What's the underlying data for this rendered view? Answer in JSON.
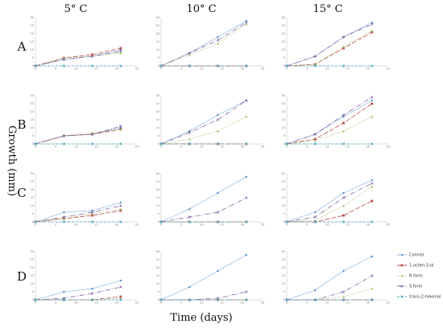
{
  "figure": {
    "column_headers": [
      "5° C",
      "10° C",
      "15° C"
    ],
    "row_labels": [
      "A",
      "B",
      "C",
      "D"
    ],
    "xlabel": "Time (days)",
    "ylabel": "Growth (mm)"
  },
  "chart_data": {
    "type": "line",
    "layout": "grid-4x3",
    "x": [
      0,
      7,
      14,
      21
    ],
    "xticks": [
      0,
      5,
      10,
      15,
      20,
      25
    ],
    "yticks": [
      0,
      5,
      10,
      15,
      20,
      25,
      30
    ],
    "xlim": [
      0,
      25
    ],
    "ylim": [
      0,
      30
    ],
    "xlabel": "Time (days)",
    "ylabel": "Growth (mm)",
    "legend_position": "bottom-right",
    "series_styles": [
      {
        "name": "Control",
        "color": "#3a7fc7",
        "dash": "1.2,1.2",
        "marker": "diamond"
      },
      {
        "name": "1-octen-3-ol",
        "color": "#c0504d",
        "dash": "6,2",
        "marker": "square"
      },
      {
        "name": "R form",
        "color": "#9bbb59",
        "dash": "1,1.5",
        "marker": "triangle"
      },
      {
        "name": "S form",
        "color": "#8064a2",
        "dash": "6,2,1,2",
        "marker": "x"
      },
      {
        "name": "trans-2-hexenal",
        "color": "#4bacc6",
        "dash": "3,2",
        "marker": "star"
      }
    ],
    "panels": [
      {
        "row": "A",
        "column": "5° C",
        "series": [
          {
            "name": "Control",
            "values": [
              0,
              4,
              6,
              10
            ]
          },
          {
            "name": "1-octen-3-ol",
            "values": [
              0,
              5,
              7,
              11
            ]
          },
          {
            "name": "R form",
            "values": [
              0,
              5,
              6,
              8
            ]
          },
          {
            "name": "S form",
            "values": [
              0,
              4,
              6,
              9
            ]
          },
          {
            "name": "trans-2-hexenal",
            "values": [
              0,
              0,
              0,
              0
            ]
          }
        ]
      },
      {
        "row": "A",
        "column": "10° C",
        "series": [
          {
            "name": "Control",
            "values": [
              0,
              8,
              18,
              28
            ]
          },
          {
            "name": "1-octen-3-ol",
            "values": [
              0,
              0,
              0,
              0
            ]
          },
          {
            "name": "R form",
            "values": [
              0,
              7,
              14,
              26
            ]
          },
          {
            "name": "S form",
            "values": [
              0,
              8,
              16,
              27
            ]
          },
          {
            "name": "trans-2-hexenal",
            "values": [
              0,
              0,
              0,
              0
            ]
          }
        ]
      },
      {
        "row": "A",
        "column": "15° C",
        "series": [
          {
            "name": "Control",
            "values": [
              0,
              6,
              18,
              27
            ]
          },
          {
            "name": "1-octen-3-ol",
            "values": [
              0,
              1,
              11,
              21
            ]
          },
          {
            "name": "R form",
            "values": [
              0,
              1,
              12,
              22
            ]
          },
          {
            "name": "S form",
            "values": [
              0,
              6,
              18,
              26
            ]
          },
          {
            "name": "trans-2-hexenal",
            "values": [
              0,
              0,
              0,
              0
            ]
          }
        ]
      },
      {
        "row": "B",
        "column": "5° C",
        "series": [
          {
            "name": "Control",
            "values": [
              0,
              5,
              6,
              10
            ]
          },
          {
            "name": "1-octen-3-ol",
            "values": [
              0,
              5,
              6,
              9
            ]
          },
          {
            "name": "R form",
            "values": [
              0,
              5,
              7,
              9
            ]
          },
          {
            "name": "S form",
            "values": [
              0,
              5,
              6,
              11
            ]
          },
          {
            "name": "trans-2-hexenal",
            "values": [
              0,
              0,
              0,
              0
            ]
          }
        ]
      },
      {
        "row": "B",
        "column": "10° C",
        "series": [
          {
            "name": "Control",
            "values": [
              0,
              8,
              18,
              27
            ]
          },
          {
            "name": "1-octen-3-ol",
            "values": [
              0,
              0,
              0,
              0
            ]
          },
          {
            "name": "R form",
            "values": [
              0,
              3,
              8,
              17
            ]
          },
          {
            "name": "S form",
            "values": [
              0,
              7,
              15,
              27
            ]
          },
          {
            "name": "trans-2-hexenal",
            "values": [
              0,
              0,
              0,
              0
            ]
          }
        ]
      },
      {
        "row": "B",
        "column": "15° C",
        "series": [
          {
            "name": "Control",
            "values": [
              0,
              6,
              17,
              27
            ]
          },
          {
            "name": "1-octen-3-ol",
            "values": [
              0,
              3,
              13,
              25
            ]
          },
          {
            "name": "R form",
            "values": [
              0,
              2,
              8,
              17
            ]
          },
          {
            "name": "S form",
            "values": [
              0,
              6,
              18,
              29
            ]
          },
          {
            "name": "trans-2-hexenal",
            "values": [
              0,
              0,
              0,
              0
            ]
          }
        ]
      },
      {
        "row": "C",
        "column": "5° C",
        "series": [
          {
            "name": "Control",
            "values": [
              0,
              6,
              7,
              12
            ]
          },
          {
            "name": "1-octen-3-ol",
            "values": [
              0,
              2,
              4,
              7
            ]
          },
          {
            "name": "R form",
            "values": [
              0,
              2,
              5,
              8
            ]
          },
          {
            "name": "S form",
            "values": [
              0,
              3,
              6,
              10
            ]
          },
          {
            "name": "trans-2-hexenal",
            "values": [
              0,
              0,
              0,
              0
            ]
          }
        ]
      },
      {
        "row": "C",
        "column": "10° C",
        "series": [
          {
            "name": "Control",
            "values": [
              0,
              8,
              18,
              28
            ]
          },
          {
            "name": "1-octen-3-ol",
            "values": [
              0,
              0,
              0,
              0
            ]
          },
          {
            "name": "R form",
            "values": [
              0,
              0,
              0,
              0
            ]
          },
          {
            "name": "S form",
            "values": [
              0,
              3,
              6,
              15
            ]
          },
          {
            "name": "trans-2-hexenal",
            "values": [
              0,
              0,
              0,
              0
            ]
          }
        ]
      },
      {
        "row": "C",
        "column": "15° C",
        "series": [
          {
            "name": "Control",
            "values": [
              0,
              6,
              18,
              26
            ]
          },
          {
            "name": "1-octen-3-ol",
            "values": [
              0,
              0,
              4,
              13
            ]
          },
          {
            "name": "R form",
            "values": [
              0,
              1,
              10,
              22
            ]
          },
          {
            "name": "S form",
            "values": [
              0,
              3,
              15,
              24
            ]
          },
          {
            "name": "trans-2-hexenal",
            "values": [
              0,
              0,
              0,
              0
            ]
          }
        ]
      },
      {
        "row": "D",
        "column": "5° C",
        "series": [
          {
            "name": "Control",
            "values": [
              0,
              5,
              7,
              12
            ]
          },
          {
            "name": "1-octen-3-ol",
            "values": [
              0,
              0,
              0,
              2
            ]
          },
          {
            "name": "R form",
            "values": [
              0,
              0,
              0,
              1
            ]
          },
          {
            "name": "S form",
            "values": [
              0,
              1,
              4,
              8
            ]
          },
          {
            "name": "trans-2-hexenal",
            "values": [
              0,
              0,
              0,
              0
            ]
          }
        ]
      },
      {
        "row": "D",
        "column": "10° C",
        "series": [
          {
            "name": "Control",
            "values": [
              0,
              8,
              18,
              28
            ]
          },
          {
            "name": "1-octen-3-ol",
            "values": [
              0,
              0,
              0,
              0
            ]
          },
          {
            "name": "R form",
            "values": [
              0,
              0,
              0,
              0
            ]
          },
          {
            "name": "S form",
            "values": [
              0,
              0,
              1,
              5
            ]
          },
          {
            "name": "trans-2-hexenal",
            "values": [
              0,
              0,
              0,
              0
            ]
          }
        ]
      },
      {
        "row": "D",
        "column": "15° C",
        "series": [
          {
            "name": "Control",
            "values": [
              0,
              6,
              18,
              27
            ]
          },
          {
            "name": "1-octen-3-ol",
            "values": [
              0,
              0,
              0,
              0
            ]
          },
          {
            "name": "R form",
            "values": [
              0,
              0,
              2,
              7
            ]
          },
          {
            "name": "S form",
            "values": [
              0,
              0,
              5,
              15
            ]
          },
          {
            "name": "trans-2-hexenal",
            "values": [
              0,
              0,
              0,
              0
            ]
          }
        ]
      }
    ]
  }
}
